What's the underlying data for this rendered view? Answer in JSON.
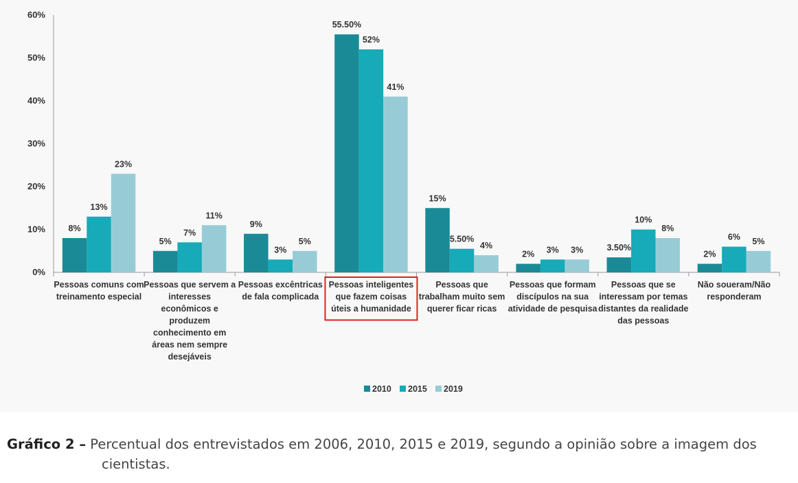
{
  "chart_data": {
    "type": "bar",
    "categories": [
      [
        "Pessoas comuns com",
        "treinamento especial"
      ],
      [
        "Pessoas que servem a",
        "interesses",
        "econômicos e",
        "produzem",
        "conhecimento em",
        "áreas nem sempre",
        "desejáveis"
      ],
      [
        "Pessoas excêntricas",
        "de fala complicada"
      ],
      [
        "Pessoas inteligentes",
        "que fazem coisas",
        "úteis a humanidade"
      ],
      [
        "Pessoas que",
        "trabalham muito sem",
        "querer ficar ricas"
      ],
      [
        "Pessoas que formam",
        "discípulos na sua",
        "atividade de pesquisa"
      ],
      [
        "Pessoas que se",
        "interessam por temas",
        "distantes da realidade",
        "das pessoas"
      ],
      [
        "Não soueram/Não",
        "responderam"
      ]
    ],
    "series": [
      {
        "name": "2010",
        "color": "#1a8a96",
        "values": [
          8,
          5,
          9,
          55.5,
          15,
          2,
          3.5,
          2
        ],
        "labels": [
          "8%",
          "5%",
          "9%",
          "55.50%",
          "15%",
          "2%",
          "3.50%",
          "2%"
        ]
      },
      {
        "name": "2015",
        "color": "#17aab8",
        "values": [
          13,
          7,
          3,
          52,
          5.5,
          3,
          10,
          6
        ],
        "labels": [
          "13%",
          "7%",
          "3%",
          "52%",
          "5.50%",
          "3%",
          "10%",
          "6%"
        ]
      },
      {
        "name": "2019",
        "color": "#97ccd6",
        "values": [
          23,
          11,
          5,
          41,
          4,
          3,
          8,
          5
        ],
        "labels": [
          "23%",
          "11%",
          "5%",
          "41%",
          "4%",
          "3%",
          "8%",
          "5%"
        ]
      }
    ],
    "ylim": [
      0,
      60
    ],
    "yticks": [
      "0%",
      "10%",
      "20%",
      "30%",
      "40%",
      "50%",
      "60%"
    ],
    "highlighted_category": 3,
    "highlight_color": "#e02020",
    "grid": false,
    "legend_position": "bottom-center"
  },
  "caption": {
    "lead": "Gráfico  2  –",
    "text_line1": "Percentual dos entrevistados em 2006, 2010, 2015 e 2019, segundo a opinião sobre a imagem dos",
    "text_line2": "cientistas."
  }
}
